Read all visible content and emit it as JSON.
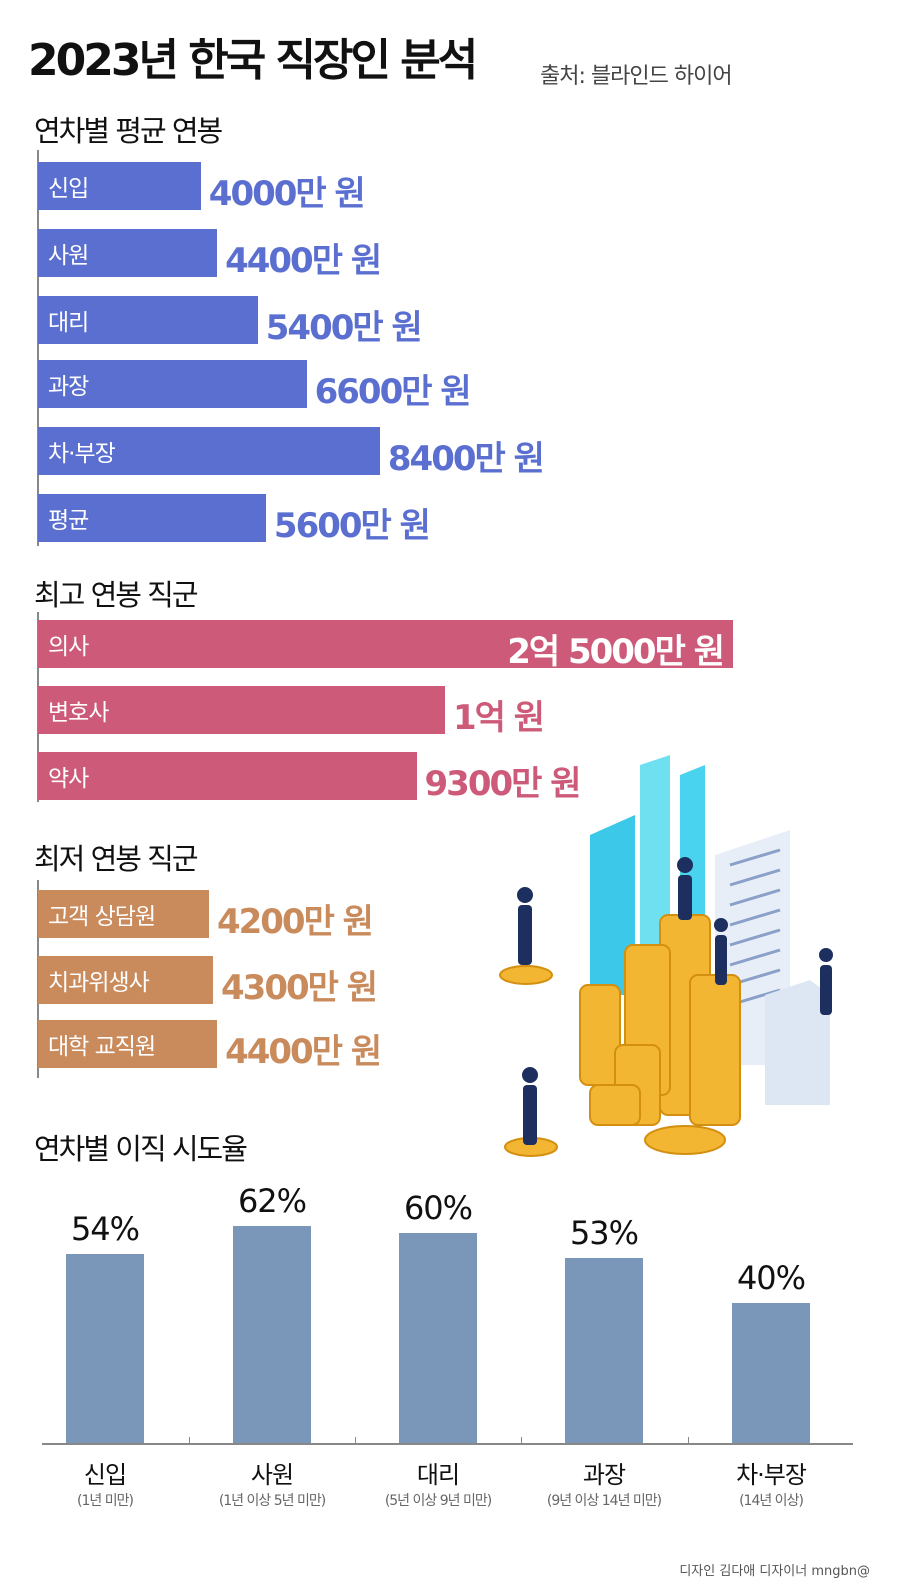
{
  "header": {
    "title": "2023년 한국 직장인 분석",
    "source": "출처: 블라인드 하이어"
  },
  "colors": {
    "avg_salary": "#5b6fd0",
    "top_jobs": "#cc5a78",
    "low_jobs": "#c98a5c",
    "turnover": "#7a96b8"
  },
  "chart_data": [
    {
      "type": "bar",
      "orientation": "horizontal",
      "title": "연차별 평균 연봉",
      "unit": "만 원",
      "categories": [
        "신입",
        "사원",
        "대리",
        "과장",
        "차·부장",
        "평균"
      ],
      "values": [
        4000,
        4400,
        5400,
        6600,
        8400,
        5600
      ],
      "labels": [
        "4000만 원",
        "4400만 원",
        "5400만 원",
        "6600만 원",
        "8400만 원",
        "5600만 원"
      ]
    },
    {
      "type": "bar",
      "orientation": "horizontal",
      "title": "최고 연봉 직군",
      "unit": "만 원",
      "axis_break": "의사",
      "categories": [
        "의사",
        "변호사",
        "약사"
      ],
      "values": [
        25000,
        10000,
        9300
      ],
      "labels": [
        "2억 5000만 원",
        "1억 원",
        "9300만 원"
      ]
    },
    {
      "type": "bar",
      "orientation": "horizontal",
      "title": "최저 연봉 직군",
      "unit": "만 원",
      "categories": [
        "고객 상담원",
        "치과위생사",
        "대학 교직원"
      ],
      "values": [
        4200,
        4300,
        4400
      ],
      "labels": [
        "4200만 원",
        "4300만 원",
        "4400만 원"
      ]
    },
    {
      "type": "bar",
      "orientation": "vertical",
      "title": "연차별 이직 시도율",
      "unit": "%",
      "categories": [
        "신입",
        "사원",
        "대리",
        "과장",
        "차·부장"
      ],
      "subcategories": [
        "(1년 미만)",
        "(1년 이상 5년 미만)",
        "(5년 이상 9년 미만)",
        "(9년 이상 14년 미만)",
        "(14년 이상)"
      ],
      "values": [
        54,
        62,
        60,
        53,
        40
      ],
      "labels": [
        "54%",
        "62%",
        "60%",
        "53%",
        "40%"
      ]
    }
  ],
  "credit": "디자인 김다애 디자이너 mngbn@"
}
